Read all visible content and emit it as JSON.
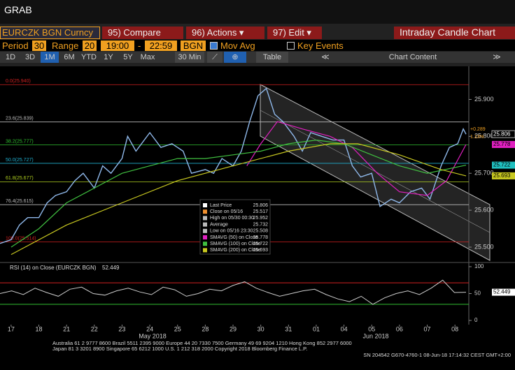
{
  "header": {
    "title": "GRAB"
  },
  "toolbar": {
    "security": "EURCZK BGN Curncy",
    "buttons": [
      "95) Compare",
      "96) Actions ▾",
      "97) Edit ▾"
    ],
    "chart_name": "Intraday Candle Chart"
  },
  "controls": {
    "period_label": "Period",
    "period": "30",
    "range_label": "Range",
    "range": "20",
    "time_from": "19:00",
    "time_sep": "-",
    "time_to": "22:59",
    "source": "BGN",
    "mov_avg": "Mov Avg",
    "key_events": "Key Events"
  },
  "tabs": {
    "ranges": [
      "1D",
      "3D",
      "1M",
      "6M",
      "YTD",
      "1Y",
      "5Y",
      "Max"
    ],
    "interval": "30 Min",
    "table": "Table",
    "chart_content": "Chart Content"
  },
  "chart_data": [
    {
      "type": "line",
      "xlim": [
        -0.4,
        16.5
      ],
      "ylim": [
        25.466,
        25.984
      ],
      "yticks": [
        {
          "value": 25.5,
          "label": "25.500"
        },
        {
          "value": 25.6,
          "label": "25.600"
        },
        {
          "value": 25.7,
          "label": "25.700"
        },
        {
          "value": 25.8,
          "label": "25.800"
        },
        {
          "value": 25.9,
          "label": "25.900"
        }
      ],
      "xticks": [
        {
          "value": 0,
          "label": "17"
        },
        {
          "value": 1,
          "label": "18"
        },
        {
          "value": 2,
          "label": "21"
        },
        {
          "value": 3,
          "label": "22"
        },
        {
          "value": 4,
          "label": "23"
        },
        {
          "value": 5,
          "label": "24"
        },
        {
          "value": 6,
          "label": "25"
        },
        {
          "value": 7,
          "label": "28"
        },
        {
          "value": 8,
          "label": "29"
        },
        {
          "value": 9,
          "label": "30"
        },
        {
          "value": 10,
          "label": "31"
        },
        {
          "value": 11,
          "label": "01"
        },
        {
          "value": 12,
          "label": "04"
        },
        {
          "value": 13,
          "label": "05"
        },
        {
          "value": 14,
          "label": "06"
        },
        {
          "value": 15,
          "label": "07"
        },
        {
          "value": 16,
          "label": "08"
        }
      ],
      "months": [
        "May 2018",
        "Jun 2018"
      ],
      "fib_levels": [
        {
          "label": "0.0(25.940)",
          "value": 25.94,
          "color": "#d02020"
        },
        {
          "label": "23.6(25.839)",
          "value": 25.839,
          "color": "#bbbbbb"
        },
        {
          "label": "38.2(25.777)",
          "value": 25.777,
          "color": "#30c030"
        },
        {
          "label": "50.0(25.727)",
          "value": 25.727,
          "color": "#20b0d0"
        },
        {
          "label": "61.8(25.677)",
          "value": 25.677,
          "color": "#b0d020"
        },
        {
          "label": "76.4(25.615)",
          "value": 25.615,
          "color": "#bbbbbb"
        },
        {
          "label": "100.0(25.514)",
          "value": 25.514,
          "color": "#d02020"
        }
      ],
      "series": [
        {
          "name": "Last Price",
          "legend_value": "25.806",
          "color": "#8fb8ea",
          "swatch": "#ffffff",
          "x": [
            -0.4,
            0,
            0.3,
            0.6,
            1.0,
            1.3,
            1.6,
            2.0,
            2.3,
            2.6,
            3.0,
            3.3,
            3.6,
            4.0,
            4.2,
            4.5,
            4.8,
            5.0,
            5.4,
            5.8,
            6.2,
            6.5,
            7.0,
            7.3,
            7.6,
            8.0,
            8.3,
            8.6,
            8.9,
            9.2,
            9.5,
            9.8,
            10.2,
            10.5,
            10.8,
            11.2,
            11.6,
            12.0,
            12.3,
            12.6,
            13.0,
            13.3,
            13.7,
            14.0,
            14.4,
            14.8,
            15.1,
            15.5,
            15.8,
            16.1,
            16.3,
            16.4
          ],
          "values": [
            25.51,
            25.52,
            25.56,
            25.58,
            25.58,
            25.62,
            25.64,
            25.65,
            25.68,
            25.7,
            25.66,
            25.72,
            25.7,
            25.74,
            25.8,
            25.76,
            25.79,
            25.81,
            25.77,
            25.78,
            25.76,
            25.7,
            25.71,
            25.7,
            25.74,
            25.72,
            25.76,
            25.84,
            25.91,
            25.93,
            25.86,
            25.84,
            25.8,
            25.76,
            25.81,
            25.8,
            25.79,
            25.79,
            25.72,
            25.69,
            25.7,
            25.61,
            25.63,
            25.62,
            25.65,
            25.66,
            25.63,
            25.72,
            25.77,
            25.78,
            25.82,
            25.806
          ]
        },
        {
          "name": "SMAVG (50) on Close",
          "legend_value": "25.778",
          "color": "#e020c0",
          "x": [
            8.5,
            9,
            9.6,
            10.5,
            11.5,
            12.3,
            13.2,
            14,
            15,
            15.7,
            16.4
          ],
          "values": [
            25.72,
            25.78,
            25.84,
            25.82,
            25.8,
            25.77,
            25.7,
            25.65,
            25.64,
            25.68,
            25.778
          ]
        },
        {
          "name": "SMAVG (100) on Close",
          "legend_value": "25.722",
          "color": "#40c040",
          "tag": "#20c0c0",
          "x": [
            0,
            1,
            2,
            3,
            4,
            5,
            6,
            7,
            8,
            9,
            10,
            11,
            12,
            13,
            14,
            15,
            16.4
          ],
          "values": [
            25.5,
            25.55,
            25.62,
            25.66,
            25.7,
            25.72,
            25.74,
            25.74,
            25.75,
            25.76,
            25.78,
            25.79,
            25.78,
            25.75,
            25.72,
            25.7,
            25.722
          ]
        },
        {
          "name": "SMAVG (200) on Close",
          "legend_value": "25.693",
          "color": "#c8c820",
          "x": [
            0,
            2,
            4,
            6,
            8,
            10,
            11.5,
            12.5,
            14,
            15.5,
            16.4
          ],
          "values": [
            25.48,
            25.56,
            25.62,
            25.68,
            25.72,
            25.76,
            25.78,
            25.78,
            25.75,
            25.71,
            25.693
          ]
        }
      ],
      "legend_stats": [
        {
          "label": "Close on 05/16",
          "value": "25.517",
          "color": "#f09030"
        },
        {
          "label": "High on 05/30 00:30",
          "value": "25.952",
          "color": "#bbbbbb"
        },
        {
          "label": "Average",
          "value": "25.732",
          "color": "#bbbbbb"
        },
        {
          "label": "Low on 05/16 23:30",
          "value": "25.508",
          "color": "#bbbbbb"
        }
      ],
      "change": "+0.289",
      "change_pct": "1.13%"
    },
    {
      "type": "line",
      "title": "RSI (14) on Close (EURCZK BGN)",
      "last_label": "52.449",
      "xlim": [
        -0.4,
        16.5
      ],
      "ylim": [
        0,
        100
      ],
      "yticks": [
        0,
        50,
        100
      ],
      "overbought": 70,
      "oversold": 30,
      "series": [
        {
          "color": "#cccccc",
          "x": [
            -0.4,
            0.02,
            0.44,
            0.86,
            1.28,
            1.7,
            2.12,
            2.54,
            2.96,
            3.38,
            3.8,
            4.22,
            4.64,
            5.06,
            5.48,
            5.9,
            6.32,
            6.74,
            7.16,
            7.58,
            8.0,
            8.42,
            8.84,
            9.26,
            9.68,
            10.1,
            10.52,
            10.94,
            11.36,
            11.78,
            12.2,
            12.62,
            13.04,
            13.46,
            13.88,
            14.3,
            14.72,
            15.14,
            15.56,
            15.98,
            16.4
          ],
          "values": [
            50,
            55,
            48,
            60,
            52,
            45,
            58,
            62,
            50,
            47,
            55,
            60,
            53,
            48,
            62,
            57,
            45,
            50,
            58,
            55,
            65,
            72,
            60,
            52,
            45,
            50,
            55,
            58,
            48,
            40,
            35,
            45,
            30,
            42,
            50,
            55,
            48,
            60,
            75,
            52,
            52.449
          ]
        }
      ]
    }
  ],
  "footer": [
    "Australia 61 2 9777 8600 Brazil 5511 2395 9000 Europe 44 20 7330 7500 Germany 49 69 9204 1210 Hong Kong 852 2977 6000",
    "Japan 81 3 3201 8900      Singapore 65 6212 1000      U.S. 1 212 318 2000      Copyright 2018 Bloomberg Finance L.P.",
    "SN 204542 G670-4760-1 08-Jun-18 17:14:32 CEST GMT+2:00"
  ]
}
